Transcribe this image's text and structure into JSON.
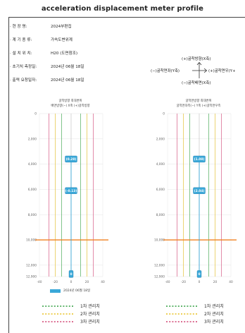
{
  "title": "acceleration displacement meter profile",
  "info": [
    {
      "label": "· 현    장    명:",
      "value": "2024부편집"
    },
    {
      "label": "· 계  기  종  류:",
      "value": "가속도변위계"
    },
    {
      "label": "· 설  치  위  치:",
      "value": "H20 (도면참조)"
    },
    {
      "label": "· 초기치  측정일:",
      "value": "2024년 06월 18일"
    },
    {
      "label": "· 출력  요청일자:",
      "value": "2024년 06월 18일"
    }
  ],
  "compass": {
    "top": "(+)굴착방향(X축)",
    "left": "(−)굴착면좌(Y축)",
    "right": "(+)굴착면우(Y+",
    "bottom": "(−)굴착배면(X축)"
  },
  "colors": {
    "series": "#3aa8d8",
    "level1": "#2e9e3e",
    "level2": "#e8c020",
    "level3": "#d04070",
    "reference_line": "#f08020",
    "grid": "#dddddd"
  },
  "chart_data": [
    {
      "type": "line",
      "title": "굴착방향 최대변위",
      "subtitle": "배면방향(−) X축 (+)굴착방향",
      "xlim": [
        -40,
        40
      ],
      "x_ticks": [
        "-40",
        "-20",
        "0",
        "20",
        "40"
      ],
      "ylim": [
        0,
        12900
      ],
      "y_ticks": [
        "0",
        "2,000",
        "4,000",
        "6,000",
        "8,000",
        "10,000",
        "12,000",
        "12,900"
      ],
      "y_tick_values": [
        0,
        2000,
        4000,
        6000,
        8000,
        10000,
        12000,
        12900
      ],
      "series": [
        {
          "name": "2024년 06월 18일",
          "points": [
            {
              "x": 0,
              "y": 3600,
              "label": "(0.28)"
            },
            {
              "x": 0,
              "y": 6100,
              "label": "(-0.13)"
            },
            {
              "x": 0,
              "y": 12700,
              "label": "0"
            }
          ]
        }
      ],
      "level_lines": [
        {
          "level": 1,
          "x": [
            -12,
            12
          ]
        },
        {
          "level": 2,
          "x": [
            -20,
            20
          ]
        },
        {
          "level": 3,
          "x": [
            -28,
            28
          ]
        }
      ],
      "reference_y": 10000
    },
    {
      "type": "line",
      "title": "굴착면방향 최대변위",
      "subtitle": "굴착면좌측(−) Y축 (+)굴착면우측",
      "xlim": [
        -40,
        40
      ],
      "x_ticks": [
        "-40",
        "-20",
        "0",
        "20",
        "40"
      ],
      "ylim": [
        0,
        12900
      ],
      "y_ticks": [
        "0",
        "2,000",
        "4,000",
        "6,000",
        "8,000",
        "10,000",
        "12,000",
        "12,900"
      ],
      "y_tick_values": [
        0,
        2000,
        4000,
        6000,
        8000,
        10000,
        12000,
        12900
      ],
      "series": [
        {
          "name": "2024년 06월 18일",
          "points": [
            {
              "x": 0,
              "y": 3600,
              "label": "(1.08)"
            },
            {
              "x": 0,
              "y": 6100,
              "label": "(2.04)"
            },
            {
              "x": 0,
              "y": 12700,
              "label": "0"
            }
          ]
        }
      ],
      "level_lines": [
        {
          "level": 1,
          "x": [
            -12,
            12
          ]
        },
        {
          "level": 2,
          "x": [
            -20,
            20
          ]
        },
        {
          "level": 3,
          "x": [
            -28,
            28
          ]
        }
      ],
      "reference_y": 10000
    }
  ],
  "legend_date": "2024년 06월 18일",
  "management_levels": [
    "1차 관리치",
    "2차 관리치",
    "3차 관리치"
  ]
}
